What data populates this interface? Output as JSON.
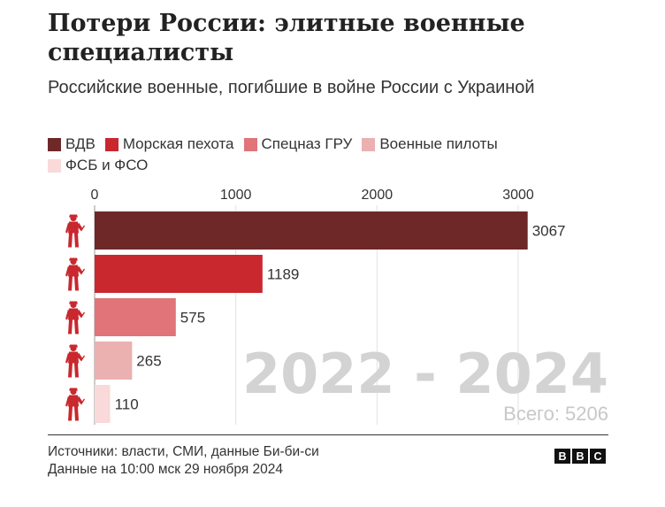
{
  "title": "Потери России: элитные военные специалисты",
  "subtitle": "Российские военные, погибшие в войне России с Украиной",
  "chart_data": {
    "type": "bar",
    "orientation": "horizontal",
    "categories": [
      "ВДВ",
      "Морская пехота",
      "Спецназ ГРУ",
      "Военные пилоты",
      "ФСБ и ФСО"
    ],
    "values": [
      3067,
      1189,
      575,
      265,
      110
    ],
    "colors": [
      "#6e2828",
      "#c8282e",
      "#e07478",
      "#ebb0b0",
      "#f9d9d9"
    ],
    "xticks": [
      0,
      1000,
      2000,
      3000
    ],
    "xlim": [
      0,
      3200
    ],
    "legend_position": "top",
    "grid": true,
    "watermark_period": "2022 - 2024",
    "watermark_total": "Всего: 5206"
  },
  "icon_color": "#c8282e",
  "icon_name": "soldier-icon",
  "footer": {
    "sources": "Источники: власти, СМИ, данные Би-би-си",
    "date": "Данные на 10:00 мск 29 ноября 2024"
  },
  "logo": [
    "B",
    "B",
    "C"
  ]
}
